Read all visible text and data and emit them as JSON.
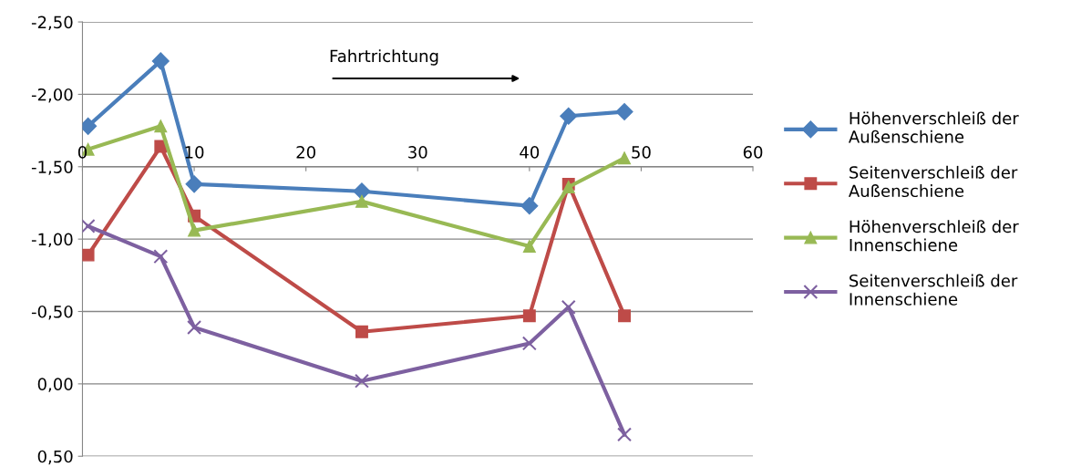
{
  "chart_data": {
    "type": "line",
    "xlim": [
      0,
      60
    ],
    "xticks": [
      0,
      10,
      20,
      30,
      40,
      50,
      60
    ],
    "ylim": [
      0.5,
      -2.5
    ],
    "yticks": [
      {
        "value": -2.5,
        "label": "-2,50"
      },
      {
        "value": -2.0,
        "label": "-2,00"
      },
      {
        "value": -1.5,
        "label": "-1,50"
      },
      {
        "value": -1.0,
        "label": "-1,00"
      },
      {
        "value": -0.5,
        "label": "-0,50"
      },
      {
        "value": 0.0,
        "label": "0,00"
      },
      {
        "value": 0.5,
        "label": "0,50"
      }
    ],
    "grid": "y",
    "legend": "right",
    "annotations": [
      "Fahrtrichtung"
    ],
    "series": [
      {
        "name": "Höhenverschleiß der\nAußenschiene",
        "color": "#4a7ebb",
        "marker": "diamond",
        "x": [
          0.5,
          7,
          10,
          25,
          40,
          43.5,
          48.5
        ],
        "values": [
          -1.78,
          -2.23,
          -1.38,
          -1.33,
          -1.23,
          -1.85,
          -1.88
        ]
      },
      {
        "name": "Seitenverschleiß der\nAußenschiene",
        "color": "#be4b48",
        "marker": "square",
        "x": [
          0.5,
          7,
          10,
          25,
          40,
          43.5,
          48.5
        ],
        "values": [
          -0.89,
          -1.64,
          -1.16,
          -0.36,
          -0.47,
          -1.38,
          -0.47
        ]
      },
      {
        "name": "Höhenverschleiß der\nInnenschiene",
        "color": "#98b954",
        "marker": "triangle",
        "x": [
          0.5,
          7,
          10,
          25,
          40,
          43.5,
          48.5
        ],
        "values": [
          -1.62,
          -1.78,
          -1.06,
          -1.26,
          -0.95,
          -1.36,
          -1.56
        ]
      },
      {
        "name": "Seitenverschleiß der\nInnenschiene",
        "color": "#7d60a0",
        "marker": "cross",
        "x": [
          0.5,
          7,
          10,
          25,
          40,
          43.5,
          48.5
        ],
        "values": [
          -1.09,
          -0.88,
          -0.39,
          -0.02,
          -0.28,
          -0.53,
          0.35
        ]
      }
    ]
  }
}
